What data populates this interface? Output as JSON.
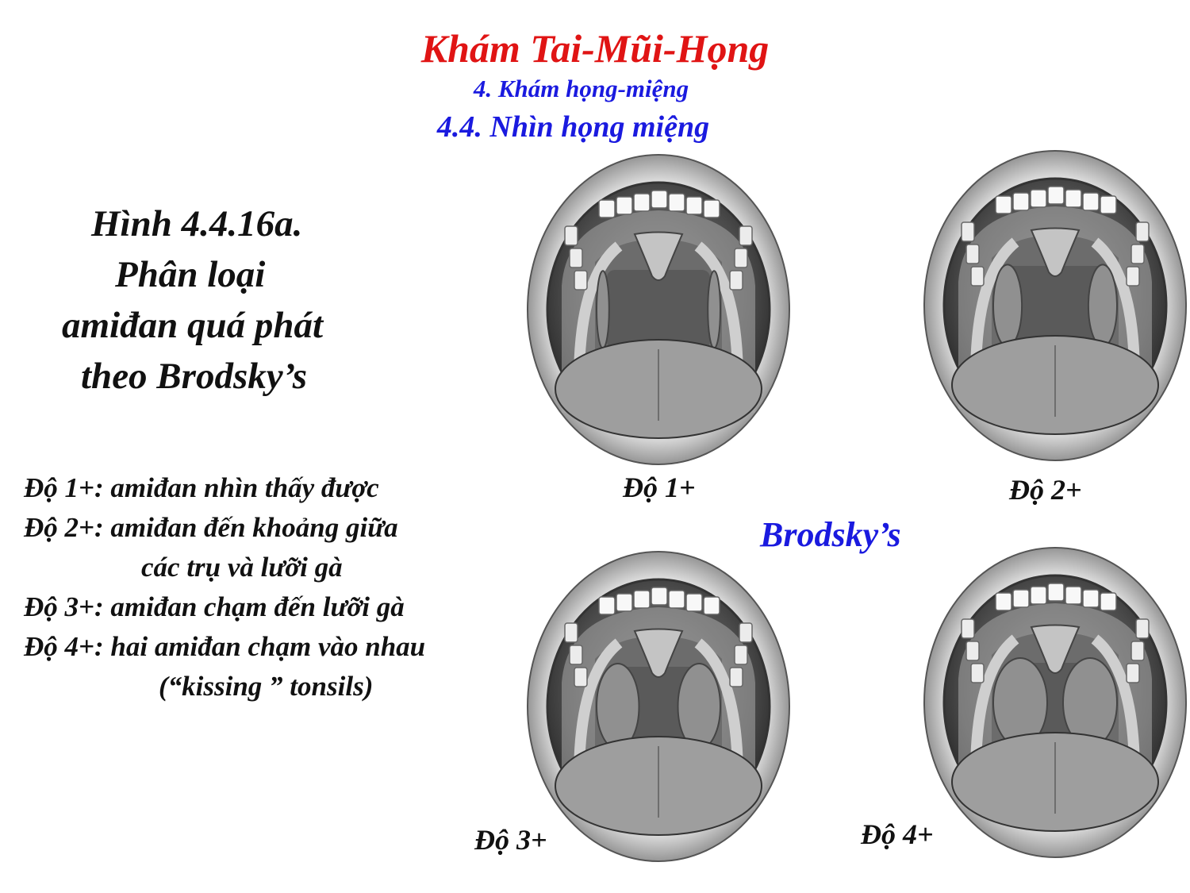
{
  "colors": {
    "title": "#e01414",
    "subtitle": "#1a1adf",
    "text": "#111111"
  },
  "header": {
    "title": "Khám Tai-Mũi-Họng",
    "subtitle1": "4. Khám họng-miệng",
    "subtitle2": "4.4. Nhìn họng miệng"
  },
  "figure": {
    "caption_lines": [
      "Hình 4.4.16a.",
      "Phân loại",
      "amiđan quá phát",
      "theo Brodsky’s"
    ]
  },
  "legend": {
    "lines": [
      "Độ 1+: amiđan nhìn thấy được",
      "Độ 2+: amiđan đến khoảng giữa",
      "các trụ và lưỡi gà",
      "Độ 3+: amiđan chạm đến lưỡi gà",
      "Độ 4+: hai amiđan chạm vào nhau",
      "(“kissing ” tonsils)"
    ]
  },
  "illustrations": {
    "brodsky_label": "Brodsky’s",
    "grades": [
      {
        "label": "Độ 1+",
        "tonsil_size": 0.1
      },
      {
        "label": "Độ 2+",
        "tonsil_size": 0.45
      },
      {
        "label": "Độ 3+",
        "tonsil_size": 0.75
      },
      {
        "label": "Độ 4+",
        "tonsil_size": 1.0
      }
    ]
  }
}
